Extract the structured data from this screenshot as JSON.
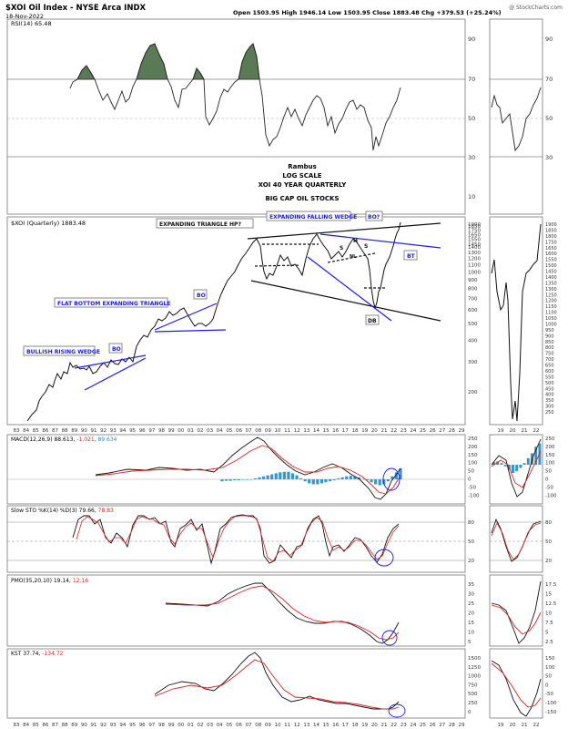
{
  "header": {
    "symbol_line": "$XOI Oil Index - NYSE Arca INDX",
    "date": "18-Nov-2022",
    "ohlc": "Open 1503.95  High 1946.14  Low 1503.95  Close 1883.48  Chg +379.53 (+25.24%)",
    "watermark": "@ StockCharts.com"
  },
  "title_block": [
    "Rambus",
    "LOG SCALE",
    "XOI 40 YEAR QUARTERLY",
    "BIG CAP OIL STOCKS"
  ],
  "panels": {
    "rsi": {
      "legend": "RSI(14) 65.48",
      "ticks": [
        "90",
        "70",
        "50",
        "30",
        "10"
      ]
    },
    "price": {
      "legend": "$XOI (Quarterly) 1883.48",
      "ticks": [
        "1900",
        "1850",
        "1750",
        "1650",
        "1550",
        "1450",
        "1400",
        "1300",
        "1200",
        "1100",
        "1000",
        "900",
        "800",
        "700",
        "600",
        "500",
        "400",
        "300",
        "200"
      ],
      "right_ticks": [
        "1900",
        "1850",
        "1800",
        "1750",
        "1650",
        "1600",
        "1550",
        "1500",
        "1450",
        "1400",
        "1350",
        "1300",
        "1250",
        "1200",
        "1150",
        "1100",
        "1050",
        "1000",
        "950",
        "900",
        "850",
        "800",
        "750",
        "700",
        "650",
        "600",
        "550",
        "500",
        "450",
        "400",
        "350",
        "300",
        "250"
      ]
    },
    "macd": {
      "legend": "MACD(12,26,9) 88.613,",
      "v2": "-1.021,",
      "v3": "89.634",
      "ticks": [
        "250",
        "200",
        "150",
        "100",
        "50",
        "0",
        "-50",
        "-100"
      ]
    },
    "sto": {
      "legend": "Slow STO %K(14) %D(3) 79.66,",
      "v2": "78.83",
      "ticks": [
        "80",
        "50",
        "20"
      ]
    },
    "pmo": {
      "legend": "PMO(35,20,10) 19.14,",
      "v2": "12.16",
      "ticks": [
        "35",
        "30",
        "25",
        "20",
        "15",
        "10",
        "5"
      ],
      "right_ticks": [
        "17.5",
        "15",
        "12.5",
        "10",
        "7.5",
        "5",
        "2.5"
      ]
    },
    "kst": {
      "legend": "KST 37.74,",
      "v2": "-134.72",
      "ticks": [
        "1500",
        "1250",
        "1000",
        "750",
        "500",
        "250",
        "0"
      ],
      "right_ticks": [
        "150",
        "100",
        "50",
        "0",
        "-50",
        "-100",
        "-150"
      ]
    }
  },
  "x_axis": {
    "years": [
      "83",
      "84",
      "85",
      "86",
      "87",
      "88",
      "89",
      "90",
      "91",
      "92",
      "93",
      "94",
      "95",
      "96",
      "97",
      "98",
      "99",
      "00",
      "01",
      "02",
      "03",
      "04",
      "05",
      "06",
      "07",
      "08",
      "09",
      "10",
      "11",
      "12",
      "13",
      "14",
      "15",
      "16",
      "17",
      "18",
      "19",
      "20",
      "21",
      "22",
      "23",
      "24",
      "25",
      "26",
      "27",
      "28",
      "29"
    ],
    "side_years": [
      "19",
      "20",
      "21",
      "22"
    ]
  },
  "annotations": {
    "bullish": "BULLISH RISING WEDGE",
    "bo1": "BO",
    "flat": "FLAT BOTTOM EXPANDING TRIANGLE",
    "bo2": "BO",
    "exp_tri": "EXPANDING TRIANGLE HP?",
    "exp_fall": "EXPANDING FALLING WEDGE",
    "bo3": "BO?",
    "bt": "BT",
    "db": "DB",
    "s1": "S",
    "h": "H",
    "s2": "S",
    "nl": "NL"
  },
  "chart_data": {
    "type": "line",
    "scale": "log",
    "x": [
      1984,
      1985,
      1986,
      1987,
      1988,
      1989,
      1990,
      1991,
      1992,
      1993,
      1994,
      1995,
      1996,
      1997,
      1998,
      1999,
      2000,
      2001,
      2002,
      2003,
      2004,
      2005,
      2006,
      2007,
      2008,
      2009,
      2010,
      2011,
      2012,
      2013,
      2014,
      2015,
      2016,
      2017,
      2018,
      2019,
      2020,
      2021,
      2022
    ],
    "series": [
      {
        "values": [
          140,
          160,
          180,
          240,
          215,
          270,
          265,
          270,
          300,
          290,
          280,
          330,
          380,
          480,
          520,
          540,
          570,
          560,
          510,
          560,
          760,
          1000,
          1200,
          1400,
          1400,
          1050,
          1150,
          1300,
          1200,
          1350,
          1580,
          1150,
          1200,
          1300,
          1350,
          1350,
          630,
          1100,
          1883
        ]
      }
    ]
  }
}
